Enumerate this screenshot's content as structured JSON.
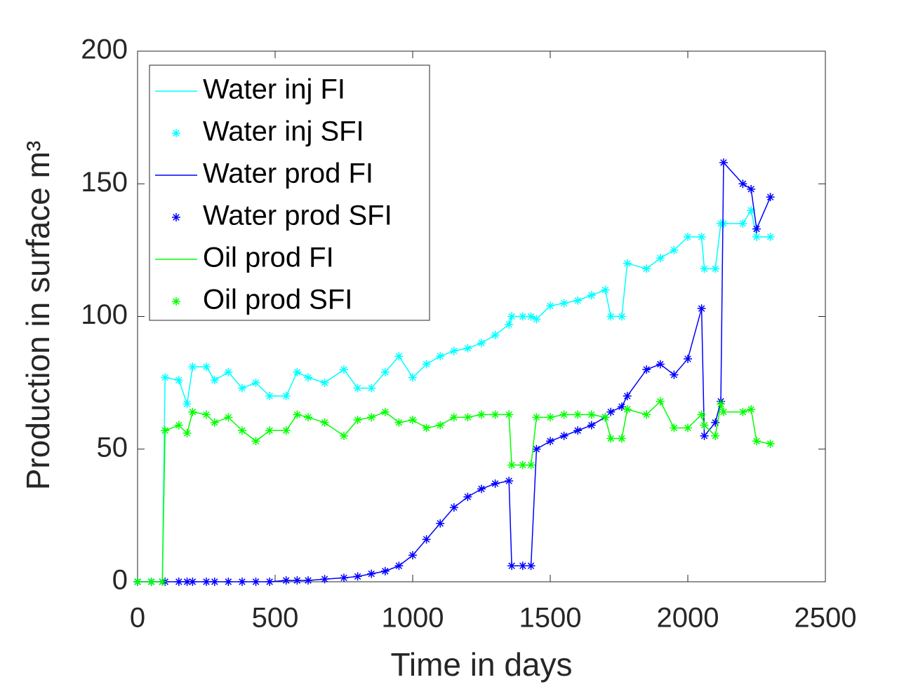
{
  "chart_data": {
    "type": "line",
    "xlabel": "Time in days",
    "ylabel": "Production in surface m³",
    "xlim": [
      0,
      2500
    ],
    "ylim": [
      0,
      200
    ],
    "xticks": [
      0,
      500,
      1000,
      1500,
      2000,
      2500
    ],
    "yticks": [
      0,
      50,
      100,
      150,
      200
    ],
    "legend": "upper left",
    "x": [
      0,
      50,
      90,
      100,
      150,
      180,
      200,
      250,
      280,
      330,
      380,
      430,
      480,
      540,
      580,
      620,
      680,
      750,
      800,
      850,
      900,
      950,
      1000,
      1050,
      1100,
      1150,
      1200,
      1250,
      1300,
      1350,
      1360,
      1400,
      1430,
      1450,
      1500,
      1550,
      1600,
      1650,
      1700,
      1720,
      1760,
      1780,
      1850,
      1900,
      1950,
      2000,
      2050,
      2060,
      2100,
      2120,
      2130,
      2200,
      2230,
      2250,
      2300
    ],
    "series": [
      {
        "name": "Water inj FI",
        "color": "#00ffff",
        "style": "line",
        "values": [
          0,
          0,
          0,
          77,
          76,
          67,
          81,
          81,
          76,
          79,
          73,
          75,
          70,
          70,
          79,
          77,
          75,
          80,
          73,
          73,
          79,
          85,
          77,
          82,
          85,
          87,
          88,
          90,
          93,
          97,
          100,
          100,
          100,
          99,
          104,
          105,
          106,
          108,
          110,
          100,
          100,
          120,
          118,
          122,
          125,
          130,
          130,
          118,
          118,
          135,
          135,
          135,
          140,
          130,
          130
        ]
      },
      {
        "name": "Water inj SFI",
        "color": "#00ffff",
        "style": "marker",
        "values": [
          0,
          0,
          0,
          77,
          76,
          67,
          81,
          81,
          76,
          79,
          73,
          75,
          70,
          70,
          79,
          77,
          75,
          80,
          73,
          73,
          79,
          85,
          77,
          82,
          85,
          87,
          88,
          90,
          93,
          97,
          100,
          100,
          100,
          99,
          104,
          105,
          106,
          108,
          110,
          100,
          100,
          120,
          118,
          122,
          125,
          130,
          130,
          118,
          118,
          135,
          135,
          135,
          140,
          130,
          130
        ]
      },
      {
        "name": "Water prod FI",
        "color": "#0000ff",
        "style": "line",
        "values": [
          0,
          0,
          0,
          0,
          0,
          0,
          0,
          0,
          0,
          0,
          0,
          0,
          0,
          0.5,
          0.5,
          0.5,
          1,
          1.5,
          2,
          3,
          4,
          6,
          10,
          16,
          22,
          28,
          32,
          35,
          37,
          38,
          6,
          6,
          6,
          50,
          53,
          55,
          57,
          59,
          62,
          64,
          66,
          70,
          80,
          82,
          78,
          84,
          103,
          55,
          60,
          68,
          158,
          150,
          148,
          133,
          145
        ]
      },
      {
        "name": "Water prod SFI",
        "color": "#0000ff",
        "style": "marker",
        "values": [
          0,
          0,
          0,
          0,
          0,
          0,
          0,
          0,
          0,
          0,
          0,
          0,
          0,
          0.5,
          0.5,
          0.5,
          1,
          1.5,
          2,
          3,
          4,
          6,
          10,
          16,
          22,
          28,
          32,
          35,
          37,
          38,
          6,
          6,
          6,
          50,
          53,
          55,
          57,
          59,
          62,
          64,
          66,
          70,
          80,
          82,
          78,
          84,
          103,
          55,
          60,
          68,
          158,
          150,
          148,
          133,
          145
        ]
      },
      {
        "name": "Oil prod FI",
        "color": "#00ff00",
        "style": "line",
        "values": [
          0,
          0,
          0,
          57,
          59,
          56,
          64,
          63,
          60,
          62,
          57,
          53,
          57,
          57,
          63,
          62,
          60,
          55,
          61,
          62,
          64,
          60,
          61,
          58,
          59,
          62,
          62,
          63,
          63,
          63,
          44,
          44,
          44,
          62,
          62,
          63,
          63,
          63,
          62,
          54,
          54,
          65,
          63,
          68,
          58,
          58,
          63,
          59,
          55,
          67,
          64,
          64,
          65,
          53,
          52
        ]
      },
      {
        "name": "Oil prod SFI",
        "color": "#00ff00",
        "style": "marker",
        "values": [
          0,
          0,
          0,
          57,
          59,
          56,
          64,
          63,
          60,
          62,
          57,
          53,
          57,
          57,
          63,
          62,
          60,
          55,
          61,
          62,
          64,
          60,
          61,
          58,
          59,
          62,
          62,
          63,
          63,
          63,
          44,
          44,
          44,
          62,
          62,
          63,
          63,
          63,
          62,
          54,
          54,
          65,
          63,
          68,
          58,
          58,
          63,
          59,
          55,
          67,
          64,
          64,
          65,
          53,
          52
        ]
      }
    ]
  }
}
